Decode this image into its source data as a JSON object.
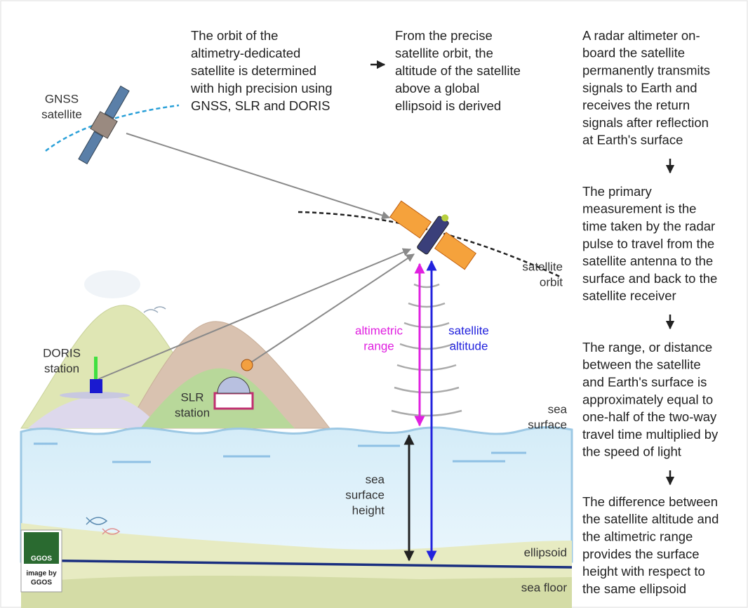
{
  "top_text": {
    "orbit_determination": [
      "The orbit of the",
      "altimetry-dedicated",
      "satellite is determined",
      "with high precision using",
      "GNSS, SLR and DORIS"
    ],
    "altitude_derivation": [
      "From the precise",
      "satellite orbit, the",
      "altitude of the satellite",
      "above a global",
      "ellipsoid is derived"
    ]
  },
  "steps": [
    [
      "A radar altimeter on-",
      "board the satellite",
      "permanently transmits",
      "signals to Earth and",
      "receives the return",
      "signals after reflection",
      "at Earth's surface"
    ],
    [
      "The primary",
      "measurement is the",
      "time taken by the radar",
      "pulse to travel from the",
      "satellite antenna to the",
      "surface and back to the",
      "satellite receiver"
    ],
    [
      "The range, or distance",
      "between the satellite",
      "and Earth's surface is",
      "approximately equal to",
      "one-half of the two-way",
      "travel time multiplied by",
      "the speed of light"
    ],
    [
      "The difference between",
      "the satellite altitude and",
      "the altimetric range",
      "provides the surface",
      "height with respect to",
      "the same ellipsoid"
    ]
  ],
  "labels": {
    "gnss_satellite": [
      "GNSS",
      "satellite"
    ],
    "satellite_orbit": [
      "satellite",
      "orbit"
    ],
    "doris_station": [
      "DORIS",
      "station"
    ],
    "slr_station": [
      "SLR",
      "station"
    ],
    "altimetric_range": [
      "altimetric",
      "range"
    ],
    "satellite_altitude": [
      "satellite",
      "altitude"
    ],
    "sea_surface": [
      "sea",
      "surface"
    ],
    "sea_surface_height": [
      "sea",
      "surface",
      "height"
    ],
    "ellipsoid": "ellipsoid",
    "sea_floor": "sea floor"
  },
  "logo": {
    "mark": "GGOS",
    "credit": [
      "image by",
      "GGOS"
    ]
  }
}
